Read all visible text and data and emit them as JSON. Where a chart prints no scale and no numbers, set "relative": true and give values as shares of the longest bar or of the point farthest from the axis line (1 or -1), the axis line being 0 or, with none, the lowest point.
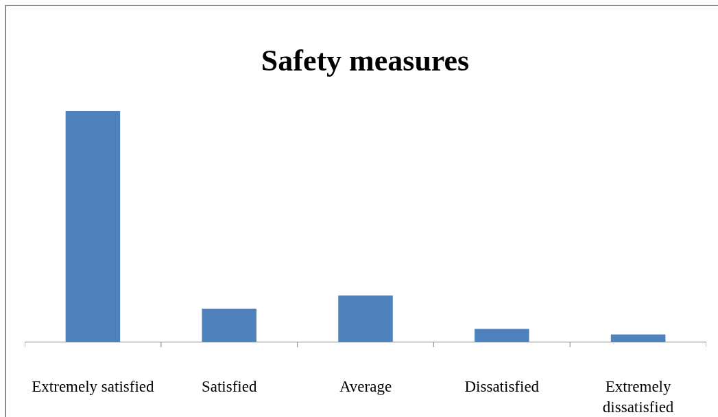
{
  "chart_data": {
    "type": "bar",
    "title": "Safety measures",
    "categories": [
      "Extremely satisfied",
      "Satisfied",
      "Average",
      "Dissatisfied",
      "Extremely dissatisfied"
    ],
    "values": [
      1,
      0.143,
      0.2,
      0.056,
      0.031
    ],
    "color": "#4f81bd",
    "relative": true
  }
}
